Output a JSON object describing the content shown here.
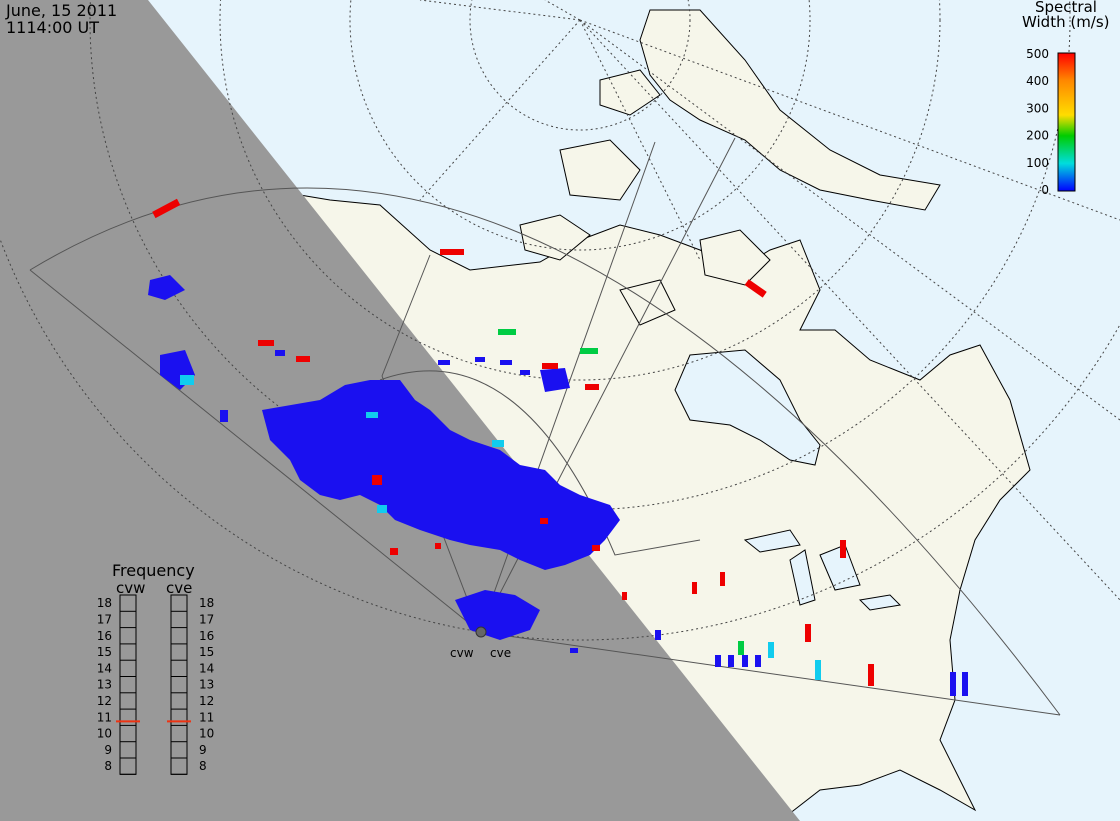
{
  "header": {
    "date": "June, 15 2011",
    "time": "1114:00 UT"
  },
  "legend": {
    "title_line1": "Spectral",
    "title_line2": "Width (m/s)",
    "ticks": [
      "500",
      "400",
      "300",
      "200",
      "100",
      "0"
    ],
    "colors": [
      "#ff0000",
      "#ff8800",
      "#ffdd00",
      "#00cc00",
      "#00dddd",
      "#0000ff"
    ]
  },
  "frequency_panel": {
    "title": "Frequency",
    "radar_left": "cvw",
    "radar_right": "cve",
    "scale": [
      "18",
      "17",
      "16",
      "15",
      "14",
      "13",
      "12",
      "11",
      "10",
      "9",
      "8"
    ],
    "current_left": 10.75,
    "current_right": 10.75
  },
  "radars": {
    "site_left": "cvw",
    "site_right": "cve"
  },
  "map_colors": {
    "night": "#999999",
    "ocean": "#e6f4fc",
    "land": "#f6f6ea",
    "marker": "#ee3311",
    "fov": "#555555"
  }
}
